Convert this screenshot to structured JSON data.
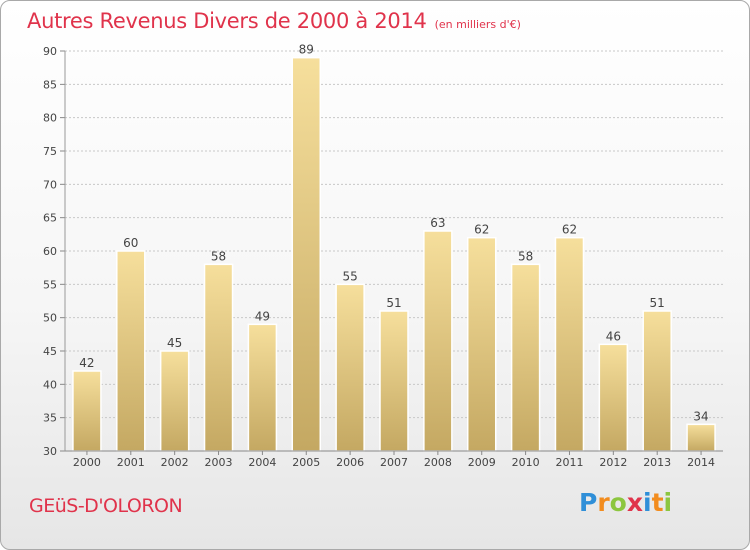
{
  "title": {
    "main": "Autres Revenus Divers de 2000 à 2014",
    "sub": "(en milliers d'€)"
  },
  "commune": "GEüS-D'OLORON",
  "brand": {
    "letters": [
      {
        "char": "P",
        "color": "#2f8fd8"
      },
      {
        "char": "r",
        "color": "#f28c1e"
      },
      {
        "char": "o",
        "color": "#8cc63f"
      },
      {
        "char": "x",
        "color": "#e0334b"
      },
      {
        "char": "i",
        "color": "#2f8fd8"
      },
      {
        "char": "t",
        "color": "#f28c1e"
      },
      {
        "char": "i",
        "color": "#8cc63f"
      }
    ]
  },
  "colors": {
    "title": "#e0334b",
    "bar_top": "#f6df9c",
    "bar_bottom": "#c4a862",
    "grid": "#c8c8c8"
  },
  "chart_data": {
    "type": "bar",
    "title": "Autres Revenus Divers de 2000 à 2014",
    "subtitle": "(en milliers d'€)",
    "categories": [
      "2000",
      "2001",
      "2002",
      "2003",
      "2004",
      "2005",
      "2006",
      "2007",
      "2008",
      "2009",
      "2010",
      "2011",
      "2012",
      "2013",
      "2014"
    ],
    "values": [
      42,
      60,
      45,
      58,
      49,
      89,
      55,
      51,
      63,
      62,
      58,
      62,
      46,
      51,
      34
    ],
    "ylim": [
      30,
      90
    ],
    "yticks": [
      30,
      35,
      40,
      45,
      50,
      55,
      60,
      65,
      70,
      75,
      80,
      85,
      90
    ],
    "grid": true,
    "legend": "none"
  }
}
